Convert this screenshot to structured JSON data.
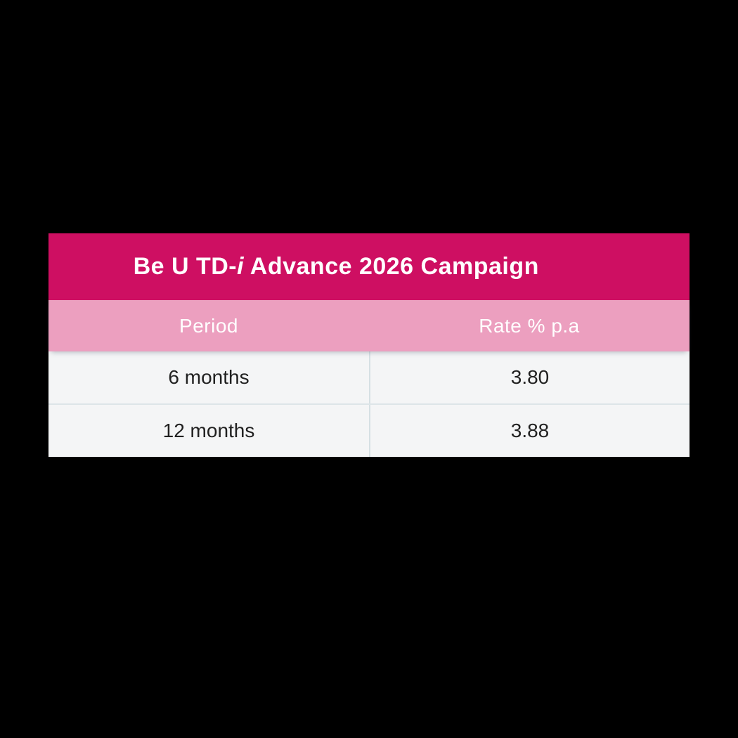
{
  "background_color": "#000000",
  "card": {
    "title": {
      "full": "Be U TD-i Advance 2026 Campaign",
      "prefix": "Be U TD-",
      "italic_char": "i",
      "suffix": " Advance 2026 Campaign"
    },
    "colors": {
      "title_bar": "#CE0F62",
      "header_row": "#EC9FBF",
      "row_background": "#F4F5F6",
      "divider": "#D9E2E6",
      "title_text": "#FFFFFF",
      "body_text": "#212121"
    },
    "table": {
      "columns": [
        "Period",
        "Rate % p.a"
      ],
      "rows": [
        {
          "period": "6 months",
          "rate": "3.80"
        },
        {
          "period": "12 months",
          "rate": "3.88"
        }
      ]
    }
  }
}
